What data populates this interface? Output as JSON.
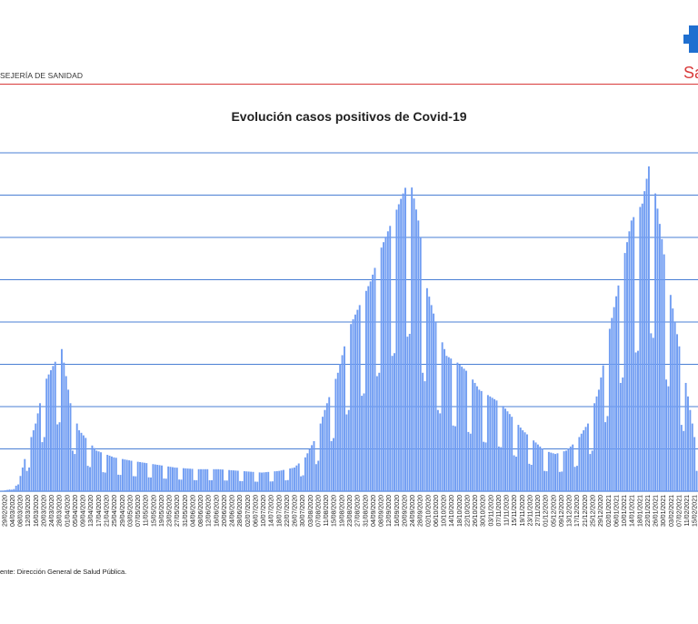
{
  "header": {
    "org_text": "SEJERÍA DE SANIDAD",
    "logo_text": "Sa",
    "rule_color": "#d93a3a"
  },
  "chart_data": {
    "type": "bar",
    "title": "Evolución casos positivos de Covid-19",
    "xlabel": "",
    "ylabel": "",
    "grid": true,
    "legend": "none",
    "bar_color": "#6f9cf2",
    "grid_color": "#4a7fd4",
    "y_gridlines": 8,
    "tick_labels": [
      "29/02/2020",
      "04/03/2020",
      "08/03/2020",
      "12/03/2020",
      "16/03/2020",
      "20/03/2020",
      "24/03/2020",
      "28/03/2020",
      "01/04/2020",
      "05/04/2020",
      "09/04/2020",
      "13/04/2020",
      "17/04/2020",
      "21/04/2020",
      "25/04/2020",
      "29/04/2020",
      "03/05/2020",
      "07/05/2020",
      "11/05/2020",
      "15/05/2020",
      "19/05/2020",
      "23/05/2020",
      "27/05/2020",
      "31/05/2020",
      "04/06/2020",
      "08/06/2020",
      "12/06/2020",
      "16/06/2020",
      "20/06/2020",
      "24/06/2020",
      "28/06/2020",
      "02/07/2020",
      "06/07/2020",
      "10/07/2020",
      "14/07/2020",
      "18/07/2020",
      "22/07/2020",
      "26/07/2020",
      "30/07/2020",
      "03/08/2020",
      "07/08/2020",
      "11/08/2020",
      "15/08/2020",
      "19/08/2020",
      "23/08/2020",
      "27/08/2020",
      "31/08/2020",
      "04/09/2020",
      "08/09/2020",
      "12/09/2020",
      "16/09/2020",
      "20/09/2020",
      "24/09/2020",
      "28/09/2020",
      "02/10/2020",
      "06/10/2020",
      "10/10/2020",
      "14/10/2020",
      "18/10/2020",
      "22/10/2020",
      "26/10/2020",
      "30/10/2020",
      "03/11/2020",
      "07/11/2020",
      "11/11/2020",
      "15/11/2020",
      "19/11/2020",
      "23/11/2020",
      "27/11/2020",
      "01/12/2020",
      "05/12/2020",
      "09/12/2020",
      "13/12/2020",
      "17/12/2020",
      "21/12/2020",
      "25/12/2020",
      "29/12/2020",
      "02/01/2021",
      "06/01/2021",
      "10/01/2021",
      "14/01/2021",
      "18/01/2021",
      "22/01/2021",
      "26/01/2021",
      "30/01/2021",
      "03/02/2021",
      "07/02/2021",
      "11/02/2021",
      "15/02/2021"
    ],
    "anchors_fraction_of_top_gridline": [
      [
        0,
        0.0
      ],
      [
        4,
        0.005
      ],
      [
        8,
        0.02
      ],
      [
        12,
        0.12
      ],
      [
        16,
        0.2
      ],
      [
        20,
        0.32
      ],
      [
        24,
        0.37
      ],
      [
        28,
        0.42
      ],
      [
        32,
        0.26
      ],
      [
        36,
        0.18
      ],
      [
        44,
        0.12
      ],
      [
        52,
        0.1
      ],
      [
        60,
        0.09
      ],
      [
        70,
        0.08
      ],
      [
        80,
        0.07
      ],
      [
        90,
        0.065
      ],
      [
        100,
        0.065
      ],
      [
        110,
        0.06
      ],
      [
        120,
        0.055
      ],
      [
        128,
        0.06
      ],
      [
        135,
        0.07
      ],
      [
        140,
        0.1
      ],
      [
        145,
        0.16
      ],
      [
        150,
        0.26
      ],
      [
        155,
        0.35
      ],
      [
        160,
        0.48
      ],
      [
        165,
        0.55
      ],
      [
        170,
        0.62
      ],
      [
        175,
        0.72
      ],
      [
        180,
        0.8
      ],
      [
        185,
        0.88
      ],
      [
        188,
        0.93
      ],
      [
        192,
        0.8
      ],
      [
        196,
        0.6
      ],
      [
        200,
        0.5
      ],
      [
        205,
        0.4
      ],
      [
        210,
        0.38
      ],
      [
        215,
        0.35
      ],
      [
        220,
        0.3
      ],
      [
        225,
        0.28
      ],
      [
        230,
        0.26
      ],
      [
        235,
        0.22
      ],
      [
        240,
        0.18
      ],
      [
        245,
        0.15
      ],
      [
        250,
        0.12
      ],
      [
        255,
        0.11
      ],
      [
        260,
        0.12
      ],
      [
        265,
        0.15
      ],
      [
        270,
        0.2
      ],
      [
        275,
        0.3
      ],
      [
        280,
        0.48
      ],
      [
        285,
        0.64
      ],
      [
        290,
        0.8
      ],
      [
        295,
        0.85
      ],
      [
        298,
        0.96
      ],
      [
        301,
        0.88
      ],
      [
        305,
        0.7
      ],
      [
        310,
        0.5
      ],
      [
        315,
        0.32
      ],
      [
        318,
        0.2
      ],
      [
        320,
        0.12
      ]
    ],
    "weekend_dip_fraction": 0.5,
    "weekend_period_days": 7
  },
  "footer": {
    "source": "ente: Dirección General de Salud Pública."
  }
}
